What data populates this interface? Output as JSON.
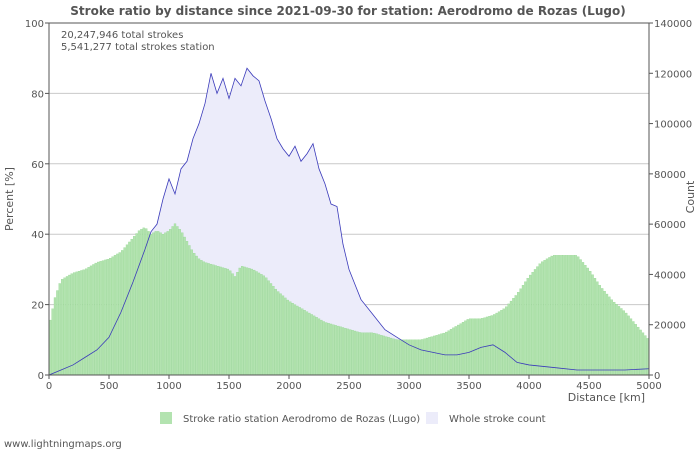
{
  "chart_data": {
    "type": "bar+line",
    "title": "Stroke ratio by distance since 2021-09-30 for station: Aerodromo de Rozas (Lugo)",
    "annotations": [
      "20,247,946 total strokes",
      "5,541,277 total strokes station"
    ],
    "xlabel": "Distance   [km]",
    "ylabel_left": "Percent   [%]",
    "ylabel_right": "Count",
    "xlim": [
      0,
      5000
    ],
    "ylim_left": [
      0,
      100
    ],
    "ylim_right": [
      0,
      140000
    ],
    "x_ticks": [
      "0",
      "500",
      "1000",
      "1500",
      "2000",
      "2500",
      "3000",
      "3500",
      "4000",
      "4500",
      "5000"
    ],
    "y_left_ticks": [
      "0",
      "20",
      "40",
      "60",
      "80",
      "100"
    ],
    "y_right_ticks": [
      "0",
      "20000",
      "40000",
      "60000",
      "80000",
      "100000",
      "120000",
      "140000"
    ],
    "legend": [
      "Stroke ratio station Aerodromo de Rozas (Lugo)",
      "Whole stroke count"
    ],
    "series": [
      {
        "name": "Stroke ratio station Aerodromo de Rozas (Lugo)",
        "kind": "bar",
        "axis": "left",
        "x": [
          0,
          50,
          100,
          200,
          300,
          400,
          500,
          600,
          700,
          750,
          800,
          850,
          900,
          950,
          1000,
          1050,
          1100,
          1150,
          1200,
          1250,
          1300,
          1400,
          1500,
          1550,
          1600,
          1700,
          1800,
          1900,
          2000,
          2100,
          2200,
          2300,
          2400,
          2500,
          2600,
          2700,
          2800,
          2900,
          3000,
          3100,
          3200,
          3300,
          3400,
          3500,
          3600,
          3700,
          3800,
          3900,
          4000,
          4100,
          4200,
          4300,
          4400,
          4500,
          4600,
          4700,
          4800,
          4900,
          5000
        ],
        "values": [
          14,
          22,
          27,
          29,
          30,
          32,
          33,
          35,
          39,
          41,
          42,
          40,
          41,
          40,
          41,
          43,
          41,
          38,
          35,
          33,
          32,
          31,
          30,
          28,
          31,
          30,
          28,
          24,
          21,
          19,
          17,
          15,
          14,
          13,
          12,
          12,
          11,
          10,
          10,
          10,
          11,
          12,
          14,
          16,
          16,
          17,
          19,
          23,
          28,
          32,
          34,
          34,
          34,
          30,
          25,
          21,
          18,
          14,
          10
        ]
      },
      {
        "name": "Whole stroke count",
        "kind": "line-area",
        "axis": "right",
        "x": [
          0,
          100,
          200,
          300,
          400,
          500,
          600,
          700,
          800,
          850,
          900,
          950,
          1000,
          1050,
          1100,
          1150,
          1200,
          1250,
          1300,
          1350,
          1400,
          1450,
          1500,
          1550,
          1600,
          1650,
          1700,
          1750,
          1800,
          1850,
          1900,
          1950,
          2000,
          2050,
          2100,
          2150,
          2200,
          2250,
          2300,
          2350,
          2400,
          2450,
          2500,
          2550,
          2600,
          2700,
          2800,
          2900,
          3000,
          3100,
          3200,
          3300,
          3400,
          3500,
          3600,
          3700,
          3800,
          3900,
          4000,
          4200,
          4400,
          4600,
          4800,
          5000
        ],
        "values": [
          0,
          2000,
          4000,
          7000,
          10000,
          15000,
          25000,
          37000,
          50000,
          57000,
          60000,
          70000,
          78000,
          72000,
          82000,
          85000,
          94000,
          100000,
          108000,
          120000,
          112000,
          118000,
          110000,
          118000,
          115000,
          122000,
          119000,
          117000,
          109000,
          102000,
          94000,
          90000,
          87000,
          91000,
          85000,
          88000,
          92000,
          82000,
          76000,
          68000,
          67000,
          52000,
          42000,
          36000,
          30000,
          24000,
          18000,
          15000,
          12000,
          10000,
          9000,
          8000,
          8000,
          9000,
          11000,
          12000,
          9000,
          5000,
          4000,
          3000,
          2000,
          2000,
          2000,
          2500
        ]
      }
    ]
  },
  "footer": {
    "credit": "www.lightningmaps.org"
  },
  "colors": {
    "bar_fill": "#b3e3b0",
    "bar_stroke": "#8fd58c",
    "area_fill": "#ececfa",
    "line": "#3a3aba",
    "grid": "#c9c9c9",
    "axis": "#555555"
  }
}
